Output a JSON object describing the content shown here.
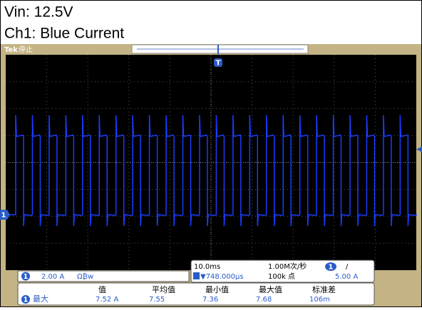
{
  "caption": {
    "line1": "Vin: 12.5V",
    "line2": "Ch1: Blue Current"
  },
  "status": {
    "brand": "Tek",
    "state": "停止"
  },
  "markers": {
    "trigger": "T",
    "channel": "1"
  },
  "channel": {
    "number": "1",
    "scale": "2.00 A",
    "icons": "Ω₿w"
  },
  "timebase": {
    "scale": "10.0ms",
    "position": "▼748.000µs",
    "sample_rate": "1.00M次/秒",
    "points": "100k 点",
    "trigger_channel": "1",
    "trigger_slope": "/",
    "trigger_level": "5.00 A"
  },
  "measurements": {
    "channel": "1",
    "label": "最大",
    "columns": [
      {
        "header": "值",
        "value": "7.52 A"
      },
      {
        "header": "平均值",
        "value": "7.55"
      },
      {
        "header": "最小值",
        "value": "7.36"
      },
      {
        "header": "最大值",
        "value": "7.68"
      },
      {
        "header": "标准差",
        "value": "106m"
      }
    ]
  }
}
